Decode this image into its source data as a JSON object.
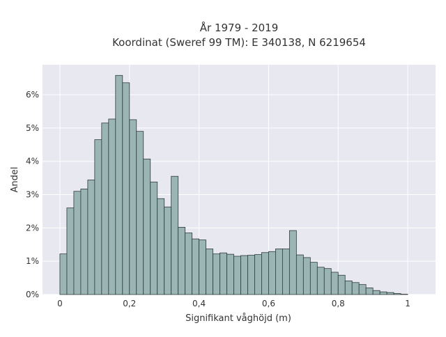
{
  "chart_data": {
    "type": "bar",
    "title_lines": [
      "År 1979 - 2019",
      "Koordinat (Sweref 99 TM): E 340138, N 6219654"
    ],
    "xlabel": "Signifikant våghöjd (m)",
    "ylabel": "Andel",
    "bin_width": 0.02,
    "x_start": 0.0,
    "xlim": [
      -0.05,
      1.08
    ],
    "ylim": [
      0,
      6.9
    ],
    "x_ticks": [
      0,
      0.2,
      0.4,
      0.6,
      0.8,
      1
    ],
    "x_tick_labels": [
      "0",
      "0,2",
      "0,4",
      "0,6",
      "0,8",
      "1"
    ],
    "y_ticks": [
      0,
      1,
      2,
      3,
      4,
      5,
      6
    ],
    "y_tick_labels": [
      "0%",
      "1%",
      "2%",
      "3%",
      "4%",
      "5%",
      "6%"
    ],
    "values": [
      1.22,
      2.6,
      3.1,
      3.17,
      3.44,
      4.65,
      5.15,
      5.27,
      6.58,
      6.36,
      5.25,
      4.9,
      4.07,
      3.38,
      2.88,
      2.63,
      3.55,
      2.02,
      1.85,
      1.67,
      1.64,
      1.37,
      1.22,
      1.25,
      1.21,
      1.15,
      1.17,
      1.18,
      1.2,
      1.26,
      1.29,
      1.37,
      1.37,
      1.92,
      1.19,
      1.11,
      0.97,
      0.82,
      0.78,
      0.67,
      0.58,
      0.41,
      0.36,
      0.3,
      0.2,
      0.12,
      0.08,
      0.06,
      0.03,
      0.01
    ],
    "grid": true,
    "colors": {
      "bar_fill": "#9bb5b4",
      "bar_edge": "#2f3a3a",
      "plot_bg": "#e8e8f0",
      "grid": "#ffffff"
    }
  }
}
